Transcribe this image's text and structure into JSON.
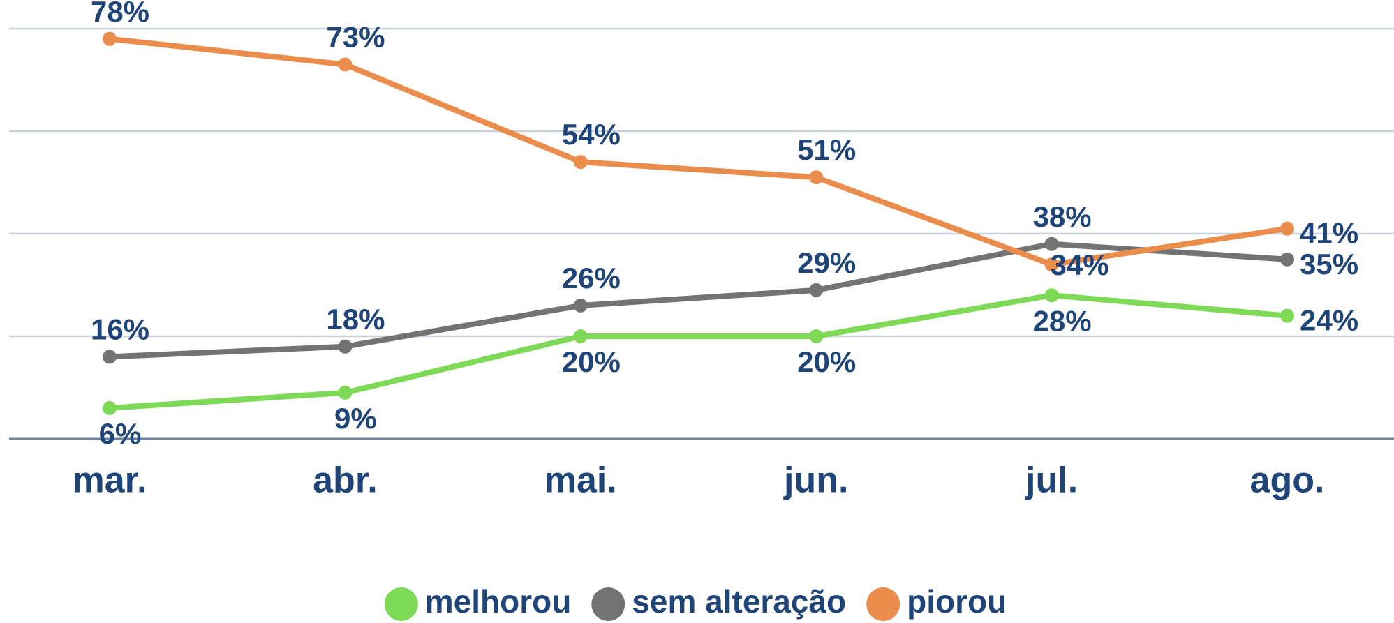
{
  "chart_data": {
    "type": "line",
    "categories": [
      "mar.",
      "abr.",
      "mai.",
      "jun.",
      "jul.",
      "ago."
    ],
    "series": [
      {
        "name": "melhorou",
        "color": "#7ed957",
        "values": [
          6,
          9,
          20,
          20,
          28,
          24
        ],
        "value_labels": [
          "6%",
          "9%",
          "20%",
          "20%",
          "28%",
          "24%"
        ]
      },
      {
        "name": "sem alteração",
        "color": "#737373",
        "values": [
          16,
          18,
          26,
          29,
          38,
          35
        ],
        "value_labels": [
          "16%",
          "18%",
          "26%",
          "29%",
          "38%",
          "35%"
        ]
      },
      {
        "name": "piorou",
        "color": "#ea8c4c",
        "values": [
          78,
          73,
          54,
          51,
          34,
          41
        ],
        "value_labels": [
          "78%",
          "73%",
          "54%",
          "51%",
          "34%",
          "41%"
        ]
      }
    ],
    "ylim": [
      0,
      80
    ],
    "yticks": [
      0,
      20,
      40,
      60,
      80
    ],
    "grid": true,
    "legend": "bottom"
  }
}
